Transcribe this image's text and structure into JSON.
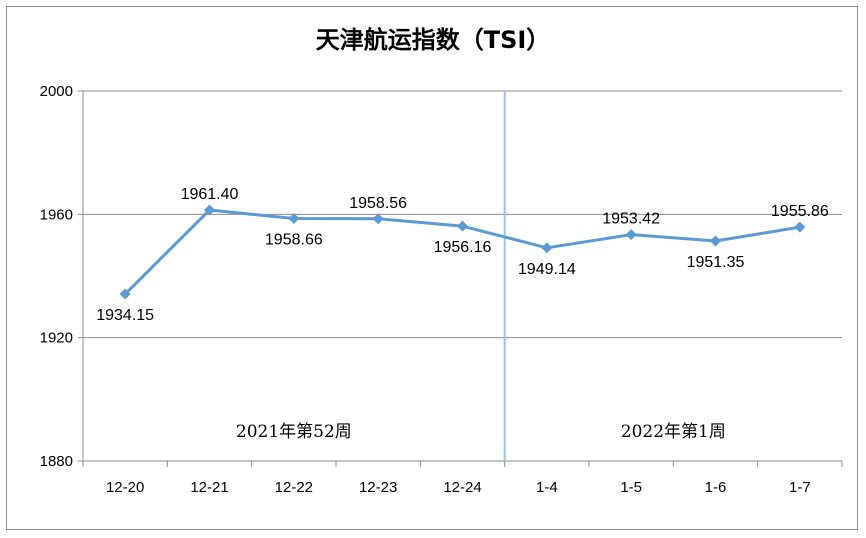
{
  "chart_data": {
    "type": "line",
    "title": "天津航运指数（TSI）",
    "categories": [
      "12-20",
      "12-21",
      "12-22",
      "12-23",
      "12-24",
      "1-4",
      "1-5",
      "1-6",
      "1-7"
    ],
    "series": [
      {
        "values": [
          1934.15,
          1961.4,
          1958.66,
          1958.56,
          1956.16,
          1949.14,
          1953.42,
          1951.35,
          1955.86
        ],
        "value_labels": [
          "1934.15",
          "1961.40",
          "1958.66",
          "1958.56",
          "1956.16",
          "1949.14",
          "1953.42",
          "1951.35",
          "1955.86"
        ],
        "color": "#5b9bd5",
        "marker": "diamond"
      }
    ],
    "ylim": [
      1880,
      2000
    ],
    "yticks": [
      "1880",
      "1920",
      "1960",
      "2000"
    ],
    "grid": true,
    "week_labels": [
      "2021年第52周",
      "2022年第1周"
    ],
    "divider_color": "#9dc3e6"
  }
}
